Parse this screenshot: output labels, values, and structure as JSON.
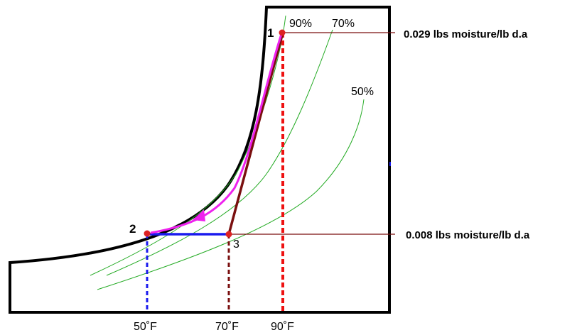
{
  "diagram": {
    "points": {
      "p1": "1",
      "p2": "2",
      "p3": "3"
    },
    "humidity_curves": {
      "c90": "90%",
      "c70": "70%",
      "c50": "50%"
    },
    "humidity_levels": {
      "high": "0.029 lbs moisture/lb d.a",
      "low": "0.008 lbs moisture/lb d.a"
    },
    "temperatures": {
      "t50": "50˚F",
      "t70": "70˚F",
      "t90": "90˚F"
    },
    "colors": {
      "outline": "#000000",
      "curves": "#22aa22",
      "process_cool": "#ee22ee",
      "process_mix": "#7a0f0f",
      "process_heat": "#1a1aee",
      "guide_red": "#ee1111",
      "guide_dark": "#7a0f0f",
      "guide_blue": "#1a1aee",
      "point": "#dd2222"
    }
  }
}
